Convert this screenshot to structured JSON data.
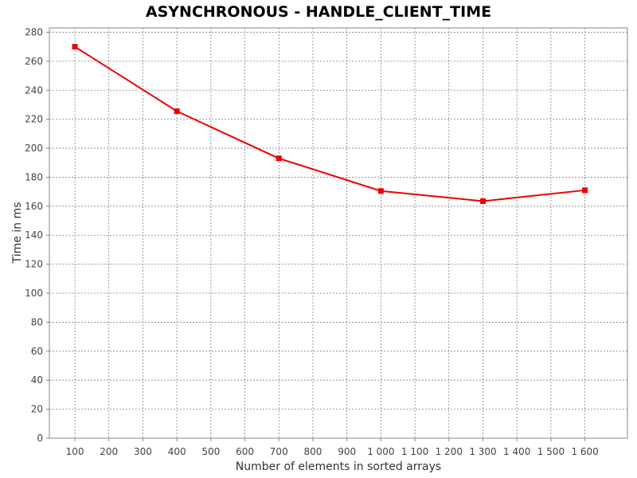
{
  "chart_data": {
    "type": "line",
    "title": "ASYNCHRONOUS - HANDLE_CLIENT_TIME",
    "xlabel": "Number of elements in sorted arrays",
    "ylabel": "Time in ms",
    "x_ticks": [
      "100",
      "200",
      "300",
      "400",
      "500",
      "600",
      "700",
      "800",
      "900",
      "1 000",
      "1 100",
      "1 200",
      "1 300",
      "1 400",
      "1 500",
      "1 600"
    ],
    "x_tick_values": [
      100,
      200,
      300,
      400,
      500,
      600,
      700,
      800,
      900,
      1000,
      1100,
      1200,
      1300,
      1400,
      1500,
      1600
    ],
    "y_ticks": [
      "0",
      "20",
      "40",
      "60",
      "80",
      "100",
      "120",
      "140",
      "160",
      "180",
      "200",
      "220",
      "240",
      "260",
      "280"
    ],
    "y_tick_values": [
      0,
      20,
      40,
      60,
      80,
      100,
      120,
      140,
      160,
      180,
      200,
      220,
      240,
      260,
      280
    ],
    "xlim": [
      25,
      1725
    ],
    "ylim": [
      0,
      283
    ],
    "grid": true,
    "series": [
      {
        "color": "#ee0000",
        "marker": "square",
        "x": [
          100,
          400,
          700,
          1000,
          1300,
          1600
        ],
        "y": [
          270,
          225.5,
          193,
          170.5,
          163.5,
          171
        ]
      }
    ]
  }
}
